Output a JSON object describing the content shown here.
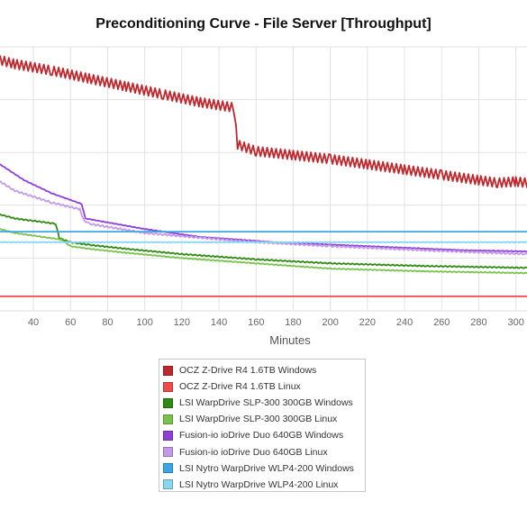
{
  "chart_data": {
    "type": "line",
    "title": "Preconditioning Curve - File Server [Throughput]",
    "xlabel": "Minutes",
    "ylabel": "",
    "xlim": [
      22,
      306
    ],
    "ylim": [
      0,
      10
    ],
    "x_ticks": [
      40,
      60,
      80,
      100,
      120,
      140,
      160,
      180,
      200,
      220,
      240,
      260,
      280,
      300
    ],
    "grid": true,
    "legend_position": "bottom",
    "series": [
      {
        "name": "OCZ Z-Drive R4 1.6TB Windows",
        "color": "#c0272d",
        "x": [
          22,
          30,
          50,
          70,
          90,
          110,
          130,
          148,
          150,
          160,
          180,
          200,
          220,
          240,
          260,
          280,
          290,
          300,
          306
        ],
        "y": [
          9.5,
          9.35,
          9.1,
          8.8,
          8.5,
          8.2,
          7.9,
          7.7,
          6.3,
          6.05,
          5.9,
          5.75,
          5.55,
          5.35,
          5.15,
          4.95,
          4.85,
          4.9,
          4.85
        ],
        "oscillation": 0.35
      },
      {
        "name": "OCZ Z-Drive R4 1.6TB Linux",
        "color": "#ef4b4b",
        "x": [
          22,
          306
        ],
        "y": [
          0.55,
          0.55
        ],
        "oscillation": 0
      },
      {
        "name": "LSI WarpDrive SLP-300 300GB Windows",
        "color": "#2e8a13",
        "x": [
          22,
          30,
          52,
          54,
          60,
          70,
          90,
          120,
          160,
          200,
          250,
          306
        ],
        "y": [
          3.65,
          3.5,
          3.3,
          2.75,
          2.6,
          2.5,
          2.35,
          2.15,
          1.95,
          1.8,
          1.7,
          1.63
        ],
        "oscillation": 0.04
      },
      {
        "name": "LSI WarpDrive SLP-300 300GB Linux",
        "color": "#78c44a",
        "x": [
          22,
          30,
          45,
          55,
          60,
          70,
          90,
          120,
          160,
          200,
          250,
          306
        ],
        "y": [
          3.1,
          2.95,
          2.8,
          2.7,
          2.45,
          2.35,
          2.2,
          2.0,
          1.8,
          1.6,
          1.5,
          1.43
        ],
        "oscillation": 0.03
      },
      {
        "name": "Fusion-io ioDrive Duo 640GB Windows",
        "color": "#8e3fd8",
        "x": [
          22,
          35,
          50,
          60,
          66,
          68,
          80,
          100,
          130,
          170,
          220,
          270,
          306
        ],
        "y": [
          5.55,
          4.95,
          4.45,
          4.2,
          4.05,
          3.5,
          3.35,
          3.1,
          2.8,
          2.6,
          2.45,
          2.3,
          2.25
        ],
        "oscillation": 0.02
      },
      {
        "name": "Fusion-io ioDrive Duo 640GB Linux",
        "color": "#c29ae9",
        "x": [
          22,
          30,
          50,
          65,
          67,
          70,
          100,
          150,
          200,
          250,
          306
        ],
        "y": [
          4.9,
          4.55,
          4.1,
          3.85,
          3.45,
          3.3,
          2.95,
          2.65,
          2.45,
          2.3,
          2.15
        ],
        "oscillation": 0.06
      },
      {
        "name": "LSI Nytro WarpDrive WLP4-200 Windows",
        "color": "#3aa7e4",
        "x": [
          22,
          306
        ],
        "y": [
          3.0,
          3.0
        ],
        "oscillation": 0
      },
      {
        "name": "LSI Nytro WarpDrive WLP4-200 Linux",
        "color": "#87d7f2",
        "x": [
          22,
          306
        ],
        "y": [
          2.6,
          2.6
        ],
        "oscillation": 0.02
      }
    ]
  }
}
